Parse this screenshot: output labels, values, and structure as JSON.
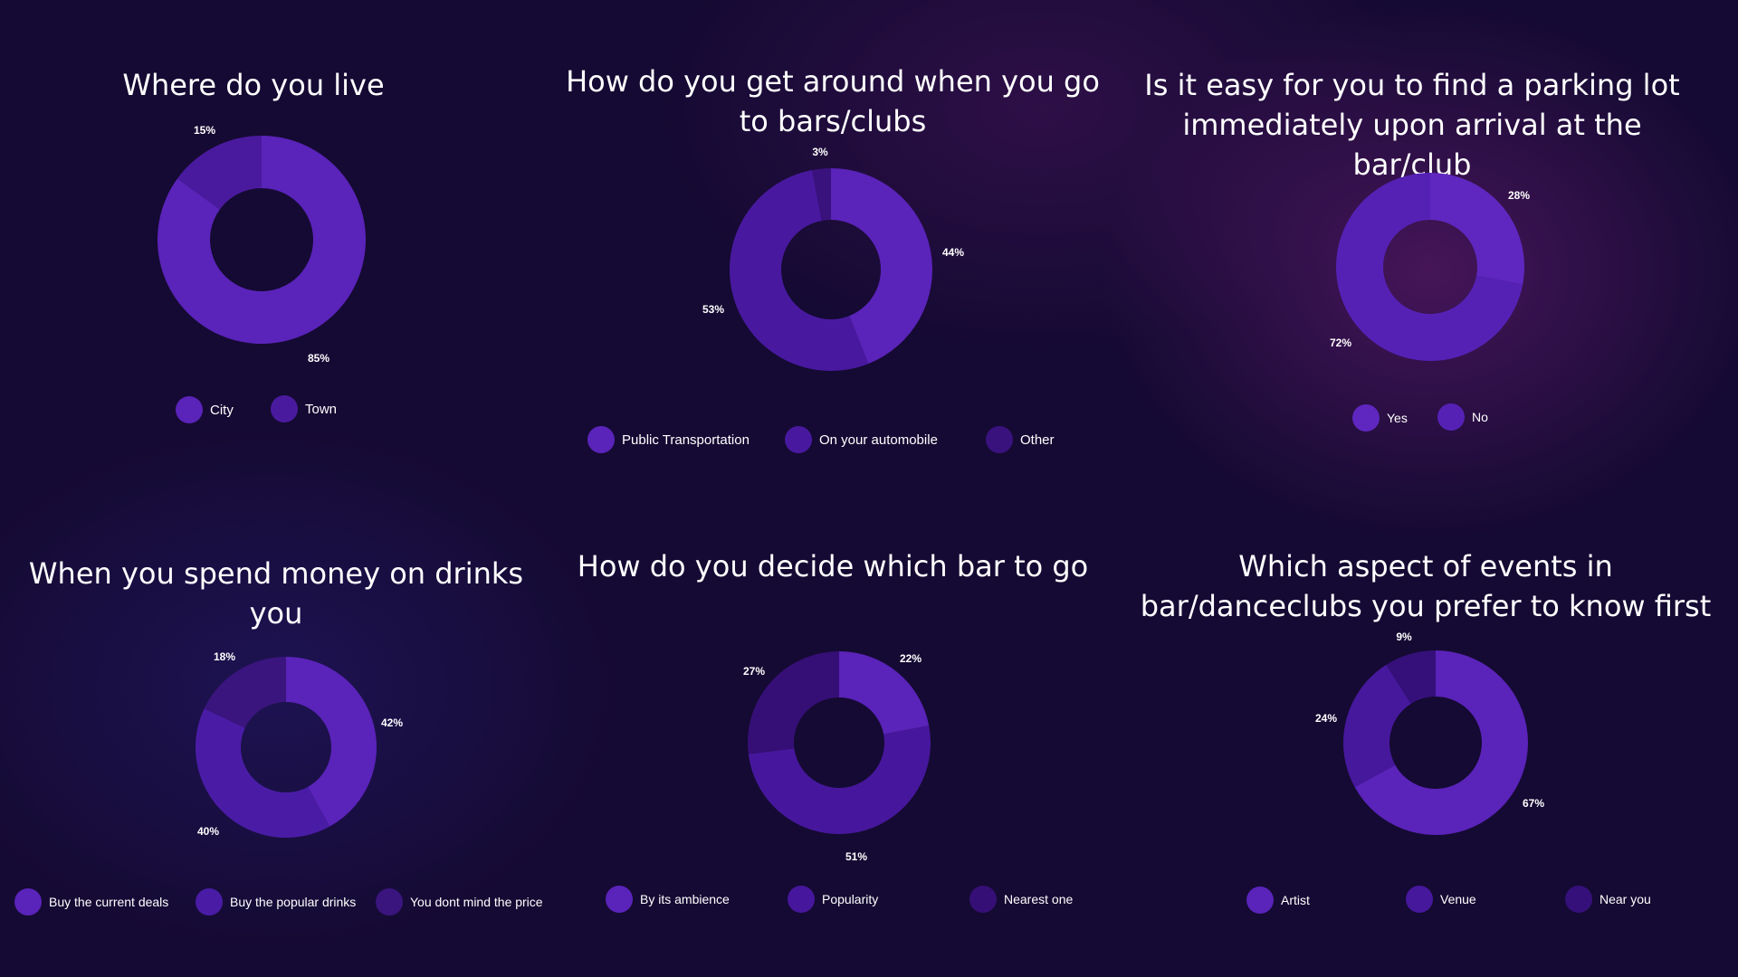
{
  "colors": {
    "background": "#150a33"
  },
  "chart_data": [
    {
      "type": "pie",
      "title": "Where do you live",
      "categories": [
        "City",
        "Town"
      ],
      "values": [
        85,
        15
      ],
      "value_labels": [
        "85%",
        "15%"
      ],
      "colors": [
        "#5a23b9",
        "#4a1a9e"
      ],
      "legend_position": "bottom"
    },
    {
      "type": "pie",
      "title": "How do you get around when you go to bars/clubs",
      "categories": [
        "Public Transportation",
        "On your automobile",
        "Other"
      ],
      "values": [
        44,
        53,
        3
      ],
      "value_labels": [
        "44%",
        "53%",
        "3%"
      ],
      "colors": [
        "#5a23b9",
        "#48199f",
        "#3a127e"
      ],
      "legend_position": "bottom"
    },
    {
      "type": "pie",
      "title": "Is it easy for you to find a parking lot immediately upon arrival at the bar/club",
      "categories": [
        "Yes",
        "No"
      ],
      "values": [
        28,
        72
      ],
      "value_labels": [
        "28%",
        "72%"
      ],
      "colors": [
        "#5f27bf",
        "#5521b5"
      ],
      "legend_position": "bottom"
    },
    {
      "type": "pie",
      "title": "When you spend money on drinks you",
      "categories": [
        "Buy the current deals",
        "Buy the popular drinks",
        "You dont mind the price"
      ],
      "values": [
        42,
        40,
        18
      ],
      "value_labels": [
        "42%",
        "40%",
        "18%"
      ],
      "colors": [
        "#5a23b9",
        "#4a1ca6",
        "#3a157e"
      ],
      "legend_position": "bottom"
    },
    {
      "type": "pie",
      "title": "How do you decide which bar to go",
      "categories": [
        "By its ambience",
        "Popularity",
        "Nearest one"
      ],
      "values": [
        22,
        51,
        27
      ],
      "value_labels": [
        "22%",
        "51%",
        "27%"
      ],
      "colors": [
        "#5a23b9",
        "#46179c",
        "#350f75"
      ],
      "legend_position": "bottom"
    },
    {
      "type": "pie",
      "title": "Which aspect of events in bar/danceclubs you prefer to know first",
      "categories": [
        "Artist",
        "Venue",
        "Near you"
      ],
      "values": [
        67,
        24,
        9
      ],
      "value_labels": [
        "67%",
        "24%",
        "9%"
      ],
      "colors": [
        "#5a23b9",
        "#46189c",
        "#35107a"
      ],
      "legend_position": "bottom"
    }
  ]
}
